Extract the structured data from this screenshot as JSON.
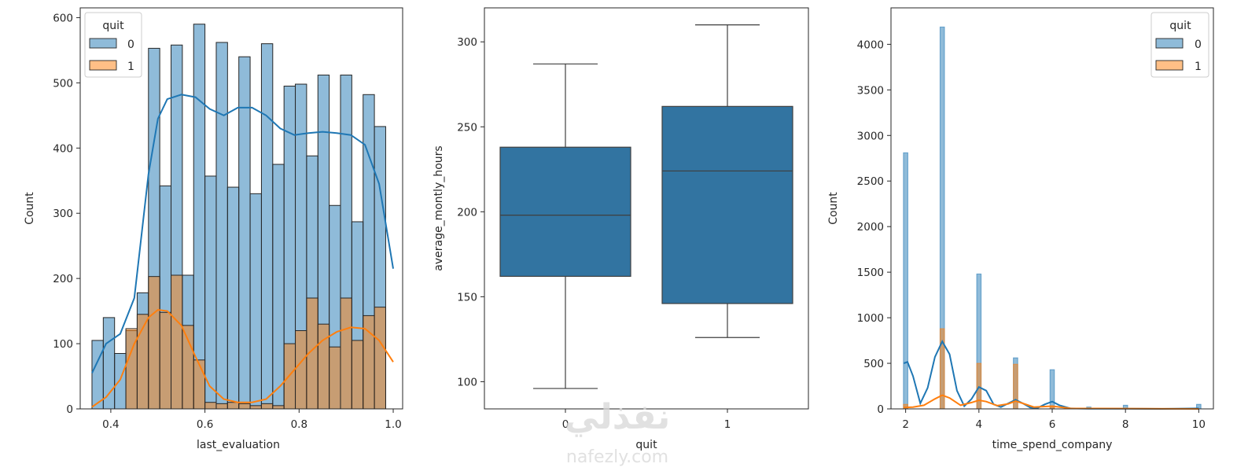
{
  "watermark": {
    "arabic": "نفذلي",
    "latin": "nafezly.com"
  },
  "palette": {
    "blue": "#1f77b4",
    "orange": "#ff7f0e",
    "box_blue": "#3274a1",
    "line": "#262626"
  },
  "chart_data": [
    {
      "type": "histogram",
      "xlabel": "last_evaluation",
      "ylabel": "Count",
      "xlim": [
        0.335,
        1.02
      ],
      "ylim": [
        0,
        615
      ],
      "xticks": [
        0.4,
        0.6,
        0.8,
        1.0
      ],
      "xtick_labels": [
        "0.4",
        "0.6",
        "0.8",
        "1.0"
      ],
      "yticks": [
        0,
        100,
        200,
        300,
        400,
        500,
        600
      ],
      "ytick_labels": [
        "0",
        "100",
        "200",
        "300",
        "400",
        "500",
        "600"
      ],
      "bin_edges": [
        0.36,
        0.384,
        0.408,
        0.432,
        0.456,
        0.48,
        0.504,
        0.528,
        0.552,
        0.576,
        0.6,
        0.624,
        0.648,
        0.672,
        0.696,
        0.72,
        0.744,
        0.768,
        0.792,
        0.816,
        0.84,
        0.864,
        0.888,
        0.912,
        0.936,
        0.96,
        0.984,
        1.0
      ],
      "kde_x": [
        0.36,
        0.39,
        0.42,
        0.45,
        0.48,
        0.5,
        0.52,
        0.55,
        0.58,
        0.61,
        0.64,
        0.67,
        0.7,
        0.73,
        0.76,
        0.79,
        0.82,
        0.85,
        0.88,
        0.91,
        0.94,
        0.97,
        1.0
      ],
      "legend": {
        "title": "quit",
        "position": "upper left"
      },
      "grid": false,
      "series": [
        {
          "name": "0",
          "color": "#1f77b4",
          "values": [
            105,
            140,
            85,
            120,
            178,
            553,
            342,
            558,
            205,
            590,
            357,
            562,
            340,
            540,
            330,
            560,
            375,
            495,
            498,
            388,
            512,
            312,
            512,
            287,
            482,
            433,
            0
          ],
          "kde": [
            55,
            100,
            115,
            170,
            360,
            445,
            475,
            482,
            478,
            460,
            450,
            462,
            462,
            450,
            430,
            420,
            423,
            425,
            423,
            420,
            405,
            345,
            215
          ]
        },
        {
          "name": "1",
          "color": "#ff7f0e",
          "values": [
            0,
            0,
            0,
            123,
            145,
            203,
            148,
            205,
            128,
            75,
            10,
            8,
            10,
            8,
            5,
            8,
            5,
            100,
            120,
            170,
            130,
            95,
            170,
            105,
            143,
            156,
            0
          ],
          "kde": [
            3,
            18,
            45,
            100,
            140,
            152,
            150,
            128,
            80,
            35,
            15,
            10,
            10,
            15,
            35,
            60,
            85,
            105,
            118,
            125,
            123,
            105,
            72
          ]
        }
      ]
    },
    {
      "type": "box",
      "xlabel": "quit",
      "ylabel": "average_montly_hours",
      "categories": [
        "0",
        "1"
      ],
      "ylim": [
        84,
        320
      ],
      "yticks": [
        100,
        150,
        200,
        250,
        300
      ],
      "ytick_labels": [
        "100",
        "150",
        "200",
        "250",
        "300"
      ],
      "color": "#3274a1",
      "boxes": [
        {
          "category": "0",
          "whisker_low": 96,
          "q1": 162,
          "median": 198,
          "q3": 238,
          "whisker_high": 287
        },
        {
          "category": "1",
          "whisker_low": 126,
          "q1": 146,
          "median": 224,
          "q3": 262,
          "whisker_high": 310
        }
      ]
    },
    {
      "type": "histogram",
      "xlabel": "time_spend_company",
      "ylabel": "Count",
      "xlim": [
        1.6,
        10.4
      ],
      "ylim": [
        0,
        4400
      ],
      "xticks": [
        2,
        4,
        6,
        8,
        10
      ],
      "xtick_labels": [
        "2",
        "4",
        "6",
        "8",
        "10"
      ],
      "yticks": [
        0,
        500,
        1000,
        1500,
        2000,
        2500,
        3000,
        3500,
        4000
      ],
      "ytick_labels": [
        "0",
        "500",
        "1000",
        "1500",
        "2000",
        "2500",
        "3000",
        "3500",
        "4000"
      ],
      "bin_width": 0.12,
      "legend": {
        "title": "quit",
        "position": "upper right"
      },
      "grid": false,
      "series": [
        {
          "name": "0",
          "color": "#1f77b4",
          "x": [
            2,
            3,
            4,
            5,
            6,
            7,
            8,
            10
          ],
          "values": [
            2810,
            4190,
            1480,
            560,
            430,
            20,
            40,
            50
          ],
          "kde_x": [
            1.95,
            2.05,
            2.2,
            2.4,
            2.6,
            2.8,
            3.0,
            3.2,
            3.4,
            3.6,
            3.8,
            4.0,
            4.2,
            4.4,
            4.6,
            4.8,
            5.0,
            5.2,
            5.4,
            5.6,
            5.8,
            6.0,
            6.2,
            6.5,
            7.0,
            8.0,
            9.0,
            10.0
          ],
          "kde": [
            500,
            515,
            360,
            60,
            230,
            570,
            740,
            600,
            200,
            30,
            110,
            240,
            200,
            50,
            20,
            60,
            100,
            60,
            15,
            10,
            50,
            80,
            40,
            5,
            2,
            2,
            0,
            5
          ]
        },
        {
          "name": "1",
          "color": "#ff7f0e",
          "x": [
            2,
            3,
            4,
            5,
            6
          ],
          "values": [
            50,
            880,
            500,
            490,
            20
          ],
          "kde_x": [
            1.95,
            2.2,
            2.5,
            2.8,
            3.0,
            3.2,
            3.5,
            3.8,
            4.0,
            4.2,
            4.5,
            4.8,
            5.0,
            5.2,
            5.5,
            6.0,
            6.5,
            10.0
          ],
          "kde": [
            15,
            20,
            40,
            110,
            150,
            120,
            40,
            70,
            95,
            80,
            35,
            55,
            85,
            60,
            20,
            30,
            5,
            0
          ]
        }
      ]
    }
  ]
}
